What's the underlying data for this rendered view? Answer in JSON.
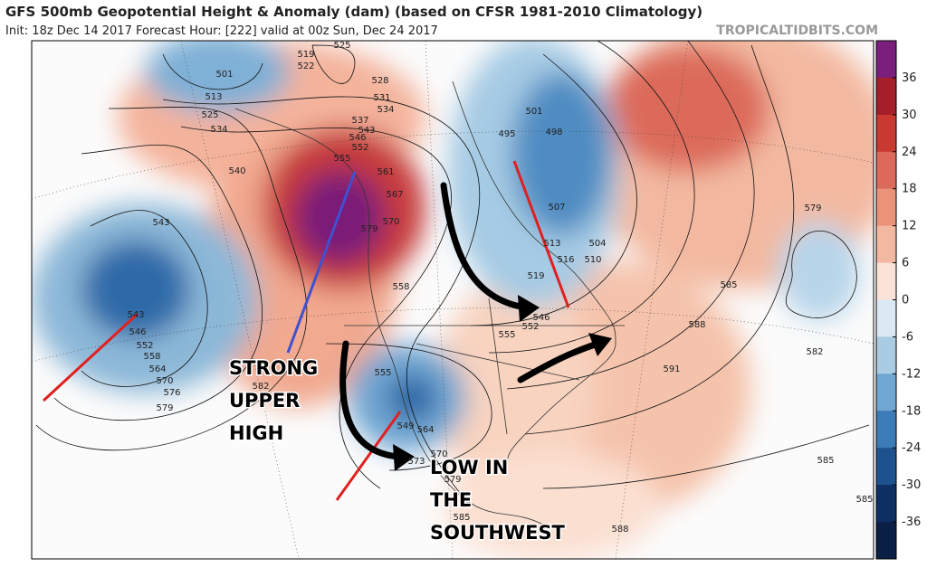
{
  "header": {
    "title": "GFS 500mb Geopotential Height & Anomaly (dam) (based on CFSR 1981-2010 Climatology)",
    "subtitle": "Init: 18z Dec 14 2017   Forecast Hour: [222]   valid at 00z Sun, Dec 24 2017",
    "watermark": "TROPICALTIDBITS.COM"
  },
  "annotations": {
    "high": [
      "STRONG",
      "UPPER",
      "HIGH"
    ],
    "low": [
      "LOW IN",
      "THE",
      "SOUTHWEST"
    ]
  },
  "colorbar": {
    "ticks": [
      "36",
      "30",
      "24",
      "18",
      "12",
      "6",
      "0",
      "-6",
      "-12",
      "-18",
      "-24",
      "-30",
      "-36"
    ]
  },
  "contour_labels": [
    "501",
    "513",
    "525",
    "534",
    "540",
    "543",
    "543",
    "546",
    "552",
    "558",
    "564",
    "570",
    "576",
    "579",
    "519",
    "522",
    "525",
    "528",
    "531",
    "534",
    "537",
    "543",
    "546",
    "552",
    "555",
    "561",
    "567",
    "570",
    "579",
    "558",
    "555",
    "549",
    "564",
    "570",
    "573",
    "579",
    "585",
    "582",
    "495",
    "498",
    "501",
    "507",
    "513",
    "516",
    "519",
    "504",
    "510",
    "546",
    "552",
    "555",
    "579",
    "585",
    "588",
    "591",
    "582",
    "585",
    "585",
    "588"
  ]
}
